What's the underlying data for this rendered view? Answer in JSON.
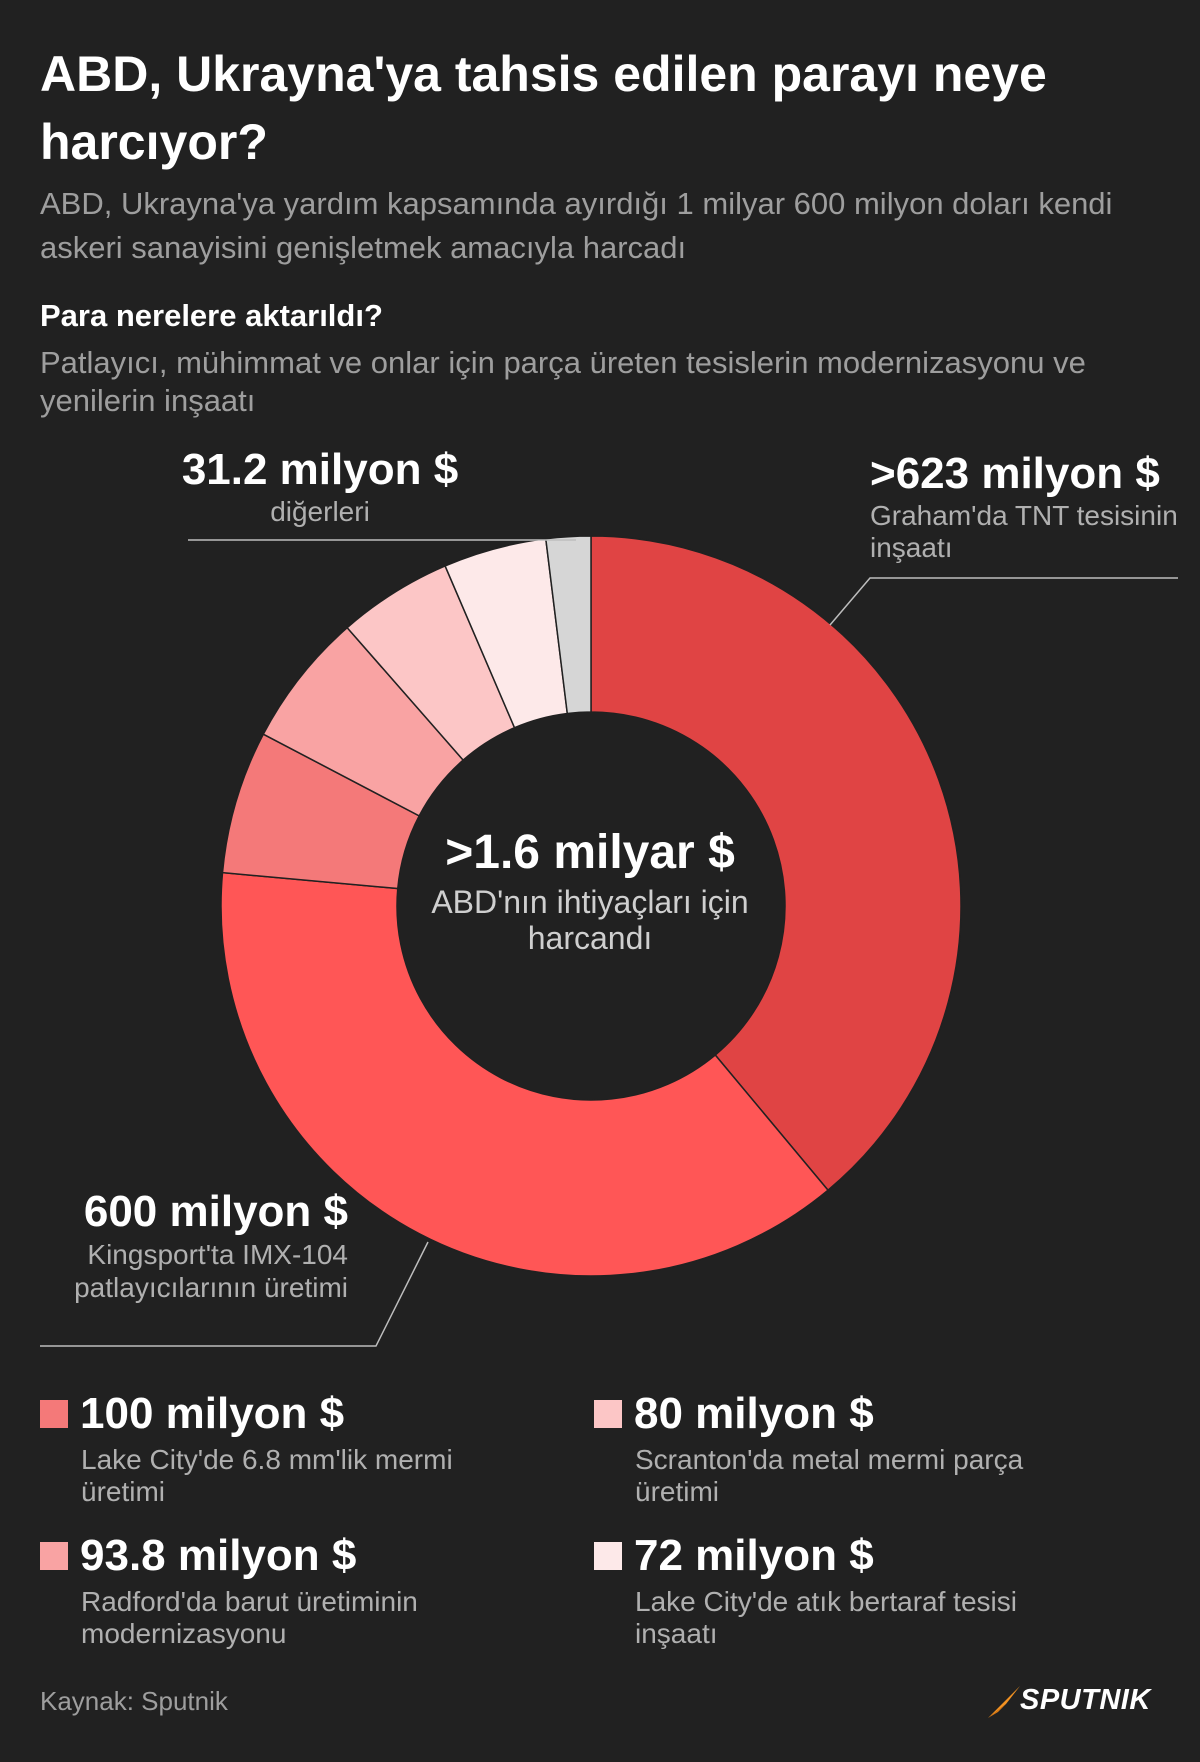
{
  "title": "ABD, Ukrayna'ya tahsis edilen parayı neye harcıyor?",
  "subtitle": "ABD, Ukrayna'ya yardım kapsamında ayırdığı 1 milyar 600 milyon doları kendi askeri sanayisini genişletmek amacıyla harcadı",
  "section_heading": "Para nerelere aktarıldı?",
  "section_desc": "Patlayıcı, mühimmat ve onlar için parça üreten tesislerin modernizasyonu ve yenilerin inşaatı",
  "center": {
    "value": ">1.6 milyar $",
    "label": "ABD'nın ihtiyaçları için harcandı"
  },
  "callouts": {
    "others": {
      "value": "31.2 milyon $",
      "label": "diğerleri"
    },
    "graham": {
      "value": ">623 milyon $",
      "label": "Graham'da TNT tesisinin inşaatı"
    },
    "kingsport": {
      "value": "600 milyon $",
      "label": "Kingsport'ta IMX-104 patlayıcılarının üretimi"
    }
  },
  "legend": [
    {
      "value": "100 milyon $",
      "label": "Lake City'de 6.8 mm'lik mermi üretimi",
      "color": "#f47979"
    },
    {
      "value": "80 milyon $",
      "label": "Scranton'da metal mermi parça üretimi",
      "color": "#fcc6c6"
    },
    {
      "value": "93.8 milyon $",
      "label": "Radford'da barut üretiminin modernizasyonu",
      "color": "#f9a3a3"
    },
    {
      "value": "72 milyon $",
      "label": "Lake City'de atık bertaraf tesisi inşaatı",
      "color": "#fde9e9"
    }
  ],
  "source": "Kaynak: Sputnik",
  "brand": "SPUTNIK",
  "chart_data": {
    "type": "pie",
    "series": [
      {
        "name": "Graham'da TNT tesisinin inşaatı",
        "value": 623,
        "color": "#e04444"
      },
      {
        "name": "Kingsport'ta IMX-104 patlayıcılarının üretimi",
        "value": 600,
        "color": "#ff5656"
      },
      {
        "name": "Lake City'de 6.8 mm'lik mermi üretimi",
        "value": 100,
        "color": "#f47979"
      },
      {
        "name": "Radford'da barut üretiminin modernizasyonu",
        "value": 93.8,
        "color": "#f9a3a3"
      },
      {
        "name": "Scranton'da metal mermi parça üretimi",
        "value": 80,
        "color": "#fcc6c6"
      },
      {
        "name": "Lake City'de atık bertaraf tesisi inşaatı",
        "value": 72,
        "color": "#fde9e9"
      },
      {
        "name": "diğerleri",
        "value": 31.2,
        "color": "#d6d6d6"
      }
    ],
    "unit": "milyon $",
    "total_label": ">1.6 milyar $"
  }
}
